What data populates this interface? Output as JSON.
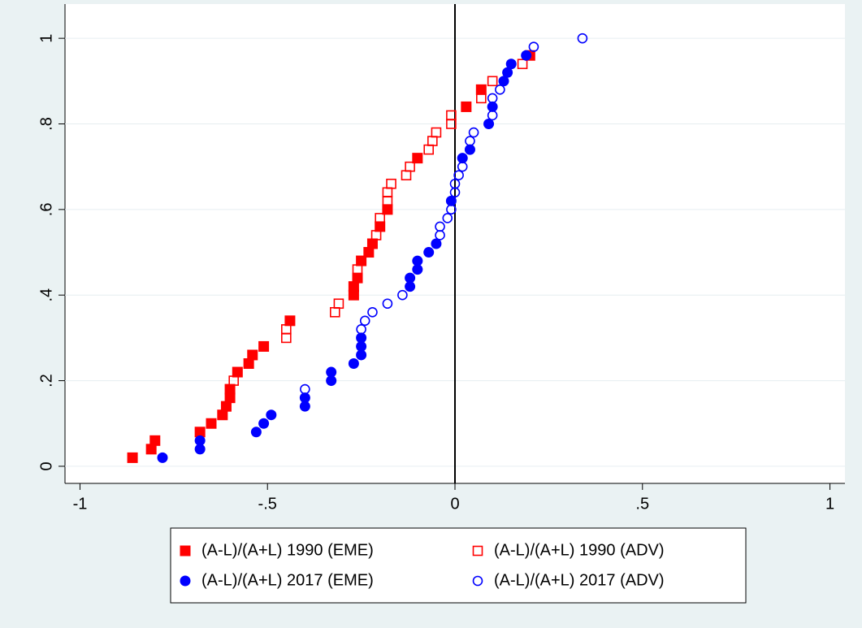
{
  "chart_data": {
    "type": "scatter",
    "xlim": [
      -1.04,
      1.04
    ],
    "ylim": [
      -0.04,
      1.08
    ],
    "xticks": [
      -1,
      {
        "value": -0.5,
        "label": "-.5"
      },
      0,
      {
        "value": 0.5,
        "label": ".5"
      },
      1
    ],
    "yticks": [
      0,
      {
        "value": 0.2,
        "label": ".2"
      },
      {
        "value": 0.4,
        "label": ".4"
      },
      {
        "value": 0.6,
        "label": ".6"
      },
      {
        "value": 0.8,
        "label": ".8"
      },
      1
    ],
    "grid": true,
    "xline": 0,
    "legend": "bottom",
    "series": [
      {
        "name": "(A-L)/(A+L) 1990 (EME)",
        "color": "#ff0000",
        "marker": "square",
        "x": [
          -0.86,
          -0.81,
          -0.8,
          -0.68,
          -0.65,
          -0.62,
          -0.61,
          -0.6,
          -0.6,
          -0.58,
          -0.55,
          -0.54,
          -0.51,
          -0.44,
          -0.27,
          -0.27,
          -0.26,
          -0.25,
          -0.23,
          -0.22,
          -0.2,
          -0.18,
          -0.1,
          0.03,
          0.07,
          0.2
        ],
        "values": [
          0.02,
          0.04,
          0.06,
          0.08,
          0.1,
          0.12,
          0.14,
          0.16,
          0.18,
          0.22,
          0.24,
          0.26,
          0.28,
          0.34,
          0.4,
          0.42,
          0.44,
          0.48,
          0.5,
          0.52,
          0.56,
          0.6,
          0.72,
          0.84,
          0.88,
          0.96
        ]
      },
      {
        "name": "(A-L)/(A+L) 1990 (ADV)",
        "color": "#ff0000",
        "marker": "square-open",
        "x": [
          -0.59,
          -0.45,
          -0.45,
          -0.32,
          -0.31,
          -0.26,
          -0.21,
          -0.2,
          -0.18,
          -0.18,
          -0.17,
          -0.13,
          -0.12,
          -0.07,
          -0.06,
          -0.05,
          -0.01,
          -0.01,
          0.07,
          0.1,
          0.18
        ],
        "values": [
          0.2,
          0.3,
          0.32,
          0.36,
          0.38,
          0.46,
          0.54,
          0.58,
          0.62,
          0.64,
          0.66,
          0.68,
          0.7,
          0.74,
          0.76,
          0.78,
          0.8,
          0.82,
          0.86,
          0.9,
          0.94
        ]
      },
      {
        "name": "(A-L)/(A+L) 2017 (EME)",
        "color": "#0000ff",
        "marker": "circle",
        "x": [
          -0.78,
          -0.68,
          -0.68,
          -0.53,
          -0.51,
          -0.49,
          -0.4,
          -0.4,
          -0.33,
          -0.33,
          -0.27,
          -0.25,
          -0.25,
          -0.25,
          -0.12,
          -0.12,
          -0.1,
          -0.1,
          -0.07,
          -0.05,
          -0.01,
          0.02,
          0.04,
          0.09,
          0.1,
          0.13,
          0.14,
          0.15,
          0.19
        ],
        "values": [
          0.02,
          0.04,
          0.06,
          0.08,
          0.1,
          0.12,
          0.14,
          0.16,
          0.2,
          0.22,
          0.24,
          0.26,
          0.28,
          0.3,
          0.42,
          0.44,
          0.46,
          0.48,
          0.5,
          0.52,
          0.62,
          0.72,
          0.74,
          0.8,
          0.84,
          0.9,
          0.92,
          0.94,
          0.96
        ]
      },
      {
        "name": "(A-L)/(A+L) 2017 (ADV)",
        "color": "#0000ff",
        "marker": "circle-open",
        "x": [
          -0.4,
          -0.25,
          -0.24,
          -0.22,
          -0.18,
          -0.14,
          -0.04,
          -0.04,
          -0.02,
          -0.01,
          0.0,
          0.0,
          0.01,
          0.02,
          0.04,
          0.05,
          0.1,
          0.1,
          0.12,
          0.21,
          0.34
        ],
        "values": [
          0.18,
          0.32,
          0.34,
          0.36,
          0.38,
          0.4,
          0.54,
          0.56,
          0.58,
          0.6,
          0.64,
          0.66,
          0.68,
          0.7,
          0.76,
          0.78,
          0.82,
          0.86,
          0.88,
          0.98,
          1.0
        ]
      }
    ]
  }
}
